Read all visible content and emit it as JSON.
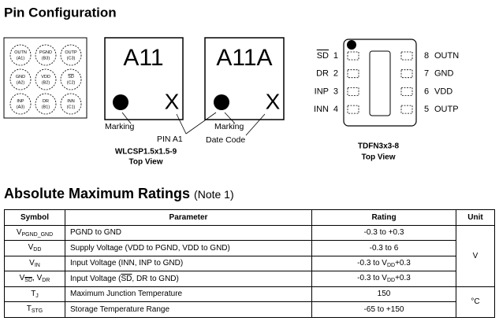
{
  "pin_configuration": {
    "title": "Pin Configuration",
    "wlcsp": {
      "balls": [
        {
          "name": "OUTN",
          "id": "(A1)"
        },
        {
          "name": "PGND",
          "id": "(B3)"
        },
        {
          "name": "OUTP",
          "id": "(C3)"
        },
        {
          "name": "GND",
          "id": "(A2)"
        },
        {
          "name": "VDD",
          "id": "(B2)"
        },
        {
          "name": "SD",
          "id": "(C2)"
        },
        {
          "name": "INP",
          "id": "(A3)"
        },
        {
          "name": "DR",
          "id": "(B1)"
        },
        {
          "name": "INN",
          "id": "(C1)"
        }
      ],
      "markings": [
        {
          "code": "A11",
          "mark": "X"
        },
        {
          "code": "A11A",
          "mark": "X"
        }
      ],
      "labels": {
        "marking_1": "Marking",
        "pin_a1": "PIN A1",
        "marking_2": "Marking",
        "date_code": "Date Code"
      },
      "package": "WLCSP1.5x1.5-9",
      "view": "Top View"
    },
    "tdfn": {
      "left_pins": [
        {
          "name": "SD",
          "number": "1"
        },
        {
          "name": "DR",
          "number": "2"
        },
        {
          "name": "INP",
          "number": "3"
        },
        {
          "name": "INN",
          "number": "4"
        }
      ],
      "right_pins": [
        {
          "number": "8",
          "name": "OUTN"
        },
        {
          "number": "7",
          "name": "GND"
        },
        {
          "number": "6",
          "name": "VDD"
        },
        {
          "number": "5",
          "name": "OUTP"
        }
      ],
      "package": "TDFN3x3-8",
      "view": "Top View"
    }
  },
  "absolute_maximum_ratings": {
    "title": "Absolute Maximum Ratings",
    "note": "(Note 1)",
    "table": {
      "header": [
        "Symbol",
        "Parameter",
        "Rating",
        "Unit"
      ],
      "rows": [
        {
          "symbol": [
            "V",
            "PGND_GND"
          ],
          "parameter": [
            "PGND to GND"
          ],
          "rating": [
            "-0.3 to +0.3"
          ]
        },
        {
          "symbol": [
            "V",
            "DD"
          ],
          "parameter": [
            "Supply Voltage (VDD to PGND, VDD to GND)"
          ],
          "rating": [
            "-0.3 to 6"
          ]
        },
        {
          "symbol": [
            "V",
            "IN"
          ],
          "parameter": [
            "Input Voltage (INN, INP to GND)"
          ],
          "rating": [
            "-0.3 to V",
            "DD",
            "+0.3"
          ]
        },
        {
          "symbol": [
            "V",
            "SD",
            ", V",
            "DR"
          ],
          "parameter": [
            "Input Voltage (",
            "SD",
            ", DR to GND)"
          ],
          "rating": [
            "-0.3 to V",
            "DD",
            "+0.3"
          ]
        },
        {
          "symbol": [
            "T",
            "J"
          ],
          "parameter": [
            "Maximum Junction Temperature"
          ],
          "rating": [
            "150"
          ]
        },
        {
          "symbol": [
            "T",
            "STG"
          ],
          "parameter": [
            "Storage Temperature Range"
          ],
          "rating": [
            "-65 to +150"
          ]
        }
      ],
      "units": [
        "V",
        "°C"
      ]
    }
  }
}
